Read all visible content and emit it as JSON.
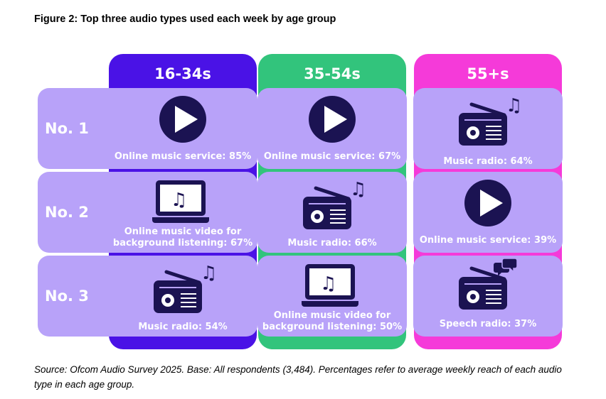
{
  "title": "Figure 2: Top three audio types used each week by age group",
  "source": "Source: Ofcom Audio Survey 2025. Base: All respondents (3,484). Percentages refer to average weekly reach of each audio type in each age group.",
  "colors": {
    "col_16_34": "#4a12e6",
    "col_35_54": "#32c47c",
    "col_55_plus": "#f53ad9",
    "cell": "#b8a2f9",
    "icon": "#1b1352"
  },
  "chart_data": {
    "type": "table",
    "columns": [
      "16-34s",
      "35-54s",
      "55+s"
    ],
    "rows": [
      "No. 1",
      "No. 2",
      "No. 3"
    ],
    "cells": [
      [
        {
          "icon": "play-icon",
          "label": "Online music service: 85%",
          "value": 85
        },
        {
          "icon": "play-icon",
          "label": "Online music service: 67%",
          "value": 67
        },
        {
          "icon": "radio-music-icon",
          "label": "Music radio: 64%",
          "value": 64
        }
      ],
      [
        {
          "icon": "laptop-music-icon",
          "label": "Online music video for background listening: 67%",
          "value": 67
        },
        {
          "icon": "radio-music-icon",
          "label": "Music radio: 66%",
          "value": 66
        },
        {
          "icon": "play-icon",
          "label": "Online music service: 39%",
          "value": 39
        }
      ],
      [
        {
          "icon": "radio-music-icon",
          "label": "Music radio: 54%",
          "value": 54
        },
        {
          "icon": "laptop-music-icon",
          "label": "Online music video for background listening: 50%",
          "value": 50
        },
        {
          "icon": "radio-speech-icon",
          "label": "Speech radio: 37%",
          "value": 37
        }
      ]
    ]
  }
}
